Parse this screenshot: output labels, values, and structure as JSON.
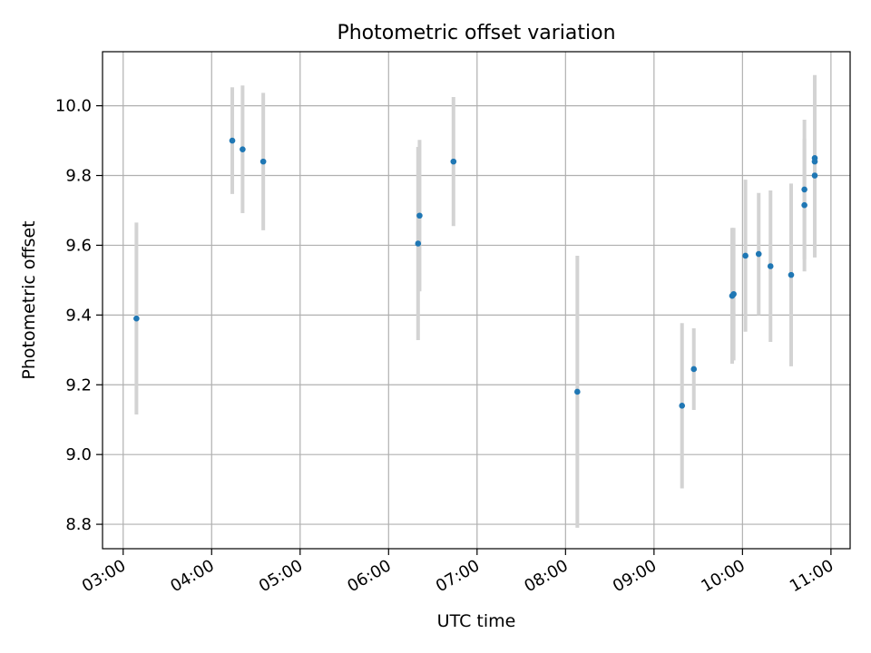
{
  "chart_data": {
    "type": "scatter",
    "title": "Photometric offset variation",
    "xlabel": "UTC time",
    "ylabel": "Photometric offset",
    "x_ticks": [
      "03:00",
      "04:00",
      "05:00",
      "06:00",
      "07:00",
      "08:00",
      "09:00",
      "10:00",
      "11:00"
    ],
    "y_ticks": [
      "8.8",
      "9.0",
      "9.2",
      "9.4",
      "9.6",
      "9.8",
      "10.0"
    ],
    "xlim": [
      "02:46",
      "11:13"
    ],
    "ylim": [
      8.73,
      10.155
    ],
    "grid": true,
    "colors": {
      "points": "#1f77b4",
      "errorbars": "#d3d3d3",
      "grid": "#b0b0b0"
    },
    "points": [
      {
        "x": "03:09",
        "y": 9.39,
        "yerr": 0.275
      },
      {
        "x": "04:14",
        "y": 9.9,
        "yerr": 0.153
      },
      {
        "x": "04:21",
        "y": 9.875,
        "yerr": 0.183
      },
      {
        "x": "04:35",
        "y": 9.84,
        "yerr": 0.197
      },
      {
        "x": "06:20",
        "y": 9.605,
        "yerr": 0.277
      },
      {
        "x": "06:21",
        "y": 9.685,
        "yerr": 0.217
      },
      {
        "x": "06:44",
        "y": 9.84,
        "yerr": 0.185
      },
      {
        "x": "08:08",
        "y": 9.18,
        "yerr": 0.39
      },
      {
        "x": "09:19",
        "y": 9.14,
        "yerr": 0.237
      },
      {
        "x": "09:27",
        "y": 9.245,
        "yerr": 0.117
      },
      {
        "x": "09:53",
        "y": 9.455,
        "yerr": 0.195
      },
      {
        "x": "09:54",
        "y": 9.46,
        "yerr": 0.19
      },
      {
        "x": "10:02",
        "y": 9.57,
        "yerr": 0.218
      },
      {
        "x": "10:11",
        "y": 9.575,
        "yerr": 0.175
      },
      {
        "x": "10:19",
        "y": 9.54,
        "yerr": 0.217
      },
      {
        "x": "10:33",
        "y": 9.515,
        "yerr": 0.262
      },
      {
        "x": "10:42",
        "y": 9.715,
        "yerr": 0.19
      },
      {
        "x": "10:42",
        "y": 9.76,
        "yerr": 0.2
      },
      {
        "x": "10:49",
        "y": 9.85,
        "yerr": 0.238
      },
      {
        "x": "10:49",
        "y": 9.84,
        "yerr": 0.2
      },
      {
        "x": "10:49",
        "y": 9.8,
        "yerr": 0.235
      }
    ]
  }
}
